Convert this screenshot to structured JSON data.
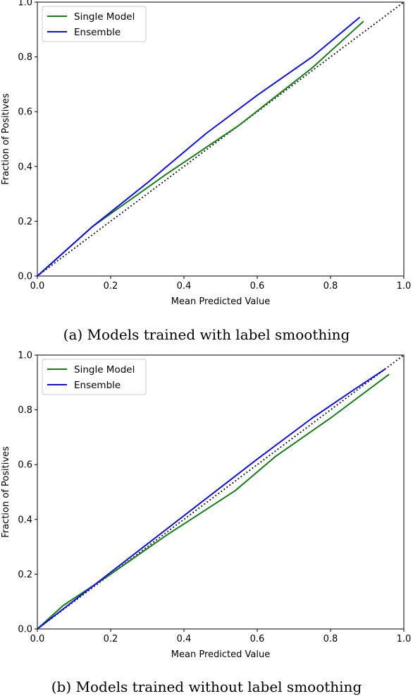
{
  "chart_data": [
    {
      "type": "line",
      "caption": "(a) Models trained with label smoothing",
      "xlabel": "Mean Predicted Value",
      "ylabel": "Fraction of Positives",
      "xlim": [
        0.0,
        1.0
      ],
      "ylim": [
        0.0,
        1.0
      ],
      "xticks": [
        "0.0",
        "0.2",
        "0.4",
        "0.6",
        "0.8",
        "1.0"
      ],
      "yticks": [
        "0.0",
        "0.2",
        "0.4",
        "0.6",
        "0.8",
        "1.0"
      ],
      "xtick_values": [
        0.0,
        0.2,
        0.4,
        0.6,
        0.8,
        1.0
      ],
      "ytick_values": [
        0.0,
        0.2,
        0.4,
        0.6,
        0.8,
        1.0
      ],
      "legend_position": "top-left",
      "grid": false,
      "reference_line": {
        "x": [
          0.0,
          1.0
        ],
        "y": [
          0.0,
          1.0
        ],
        "style": "dotted",
        "color": "#222222"
      },
      "series": [
        {
          "name": "Single Model",
          "color": "#1a7a1a",
          "x": [
            0.0,
            0.15,
            0.35,
            0.55,
            0.75,
            0.89
          ],
          "y": [
            0.0,
            0.18,
            0.37,
            0.55,
            0.76,
            0.93
          ]
        },
        {
          "name": "Ensemble",
          "color": "#1010dd",
          "x": [
            0.0,
            0.15,
            0.3,
            0.46,
            0.6,
            0.75,
            0.88
          ],
          "y": [
            0.0,
            0.18,
            0.34,
            0.52,
            0.66,
            0.8,
            0.945
          ]
        }
      ]
    },
    {
      "type": "line",
      "caption": "(b) Models trained without label smoothing",
      "xlabel": "Mean Predicted Value",
      "ylabel": "Fraction of Positives",
      "xlim": [
        0.0,
        1.0
      ],
      "ylim": [
        0.0,
        1.0
      ],
      "xticks": [
        "0.0",
        "0.2",
        "0.4",
        "0.6",
        "0.8",
        "1.0"
      ],
      "yticks": [
        "0.0",
        "0.2",
        "0.4",
        "0.6",
        "0.8",
        "1.0"
      ],
      "xtick_values": [
        0.0,
        0.2,
        0.4,
        0.6,
        0.8,
        1.0
      ],
      "ytick_values": [
        0.0,
        0.2,
        0.4,
        0.6,
        0.8,
        1.0
      ],
      "legend_position": "top-left",
      "grid": false,
      "reference_line": {
        "x": [
          0.0,
          1.0
        ],
        "y": [
          0.0,
          1.0
        ],
        "style": "dotted",
        "color": "#222222"
      },
      "series": [
        {
          "name": "Single Model",
          "color": "#1a7a1a",
          "x": [
            0.0,
            0.07,
            0.2,
            0.35,
            0.54,
            0.65,
            0.8,
            0.96
          ],
          "y": [
            0.0,
            0.085,
            0.2,
            0.34,
            0.505,
            0.63,
            0.77,
            0.93
          ]
        },
        {
          "name": "Ensemble",
          "color": "#1010dd",
          "x": [
            0.0,
            0.15,
            0.3,
            0.45,
            0.6,
            0.75,
            0.86,
            0.95
          ],
          "y": [
            0.0,
            0.155,
            0.31,
            0.465,
            0.62,
            0.77,
            0.87,
            0.95
          ]
        }
      ]
    }
  ]
}
